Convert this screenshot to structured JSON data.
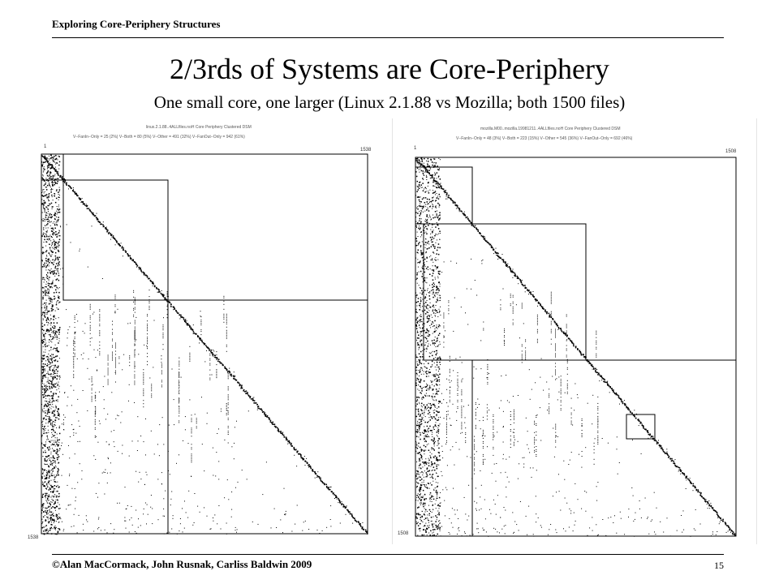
{
  "header": {
    "title": "Exploring Core-Periphery Structures"
  },
  "slide": {
    "title": "2/3rds of Systems are Core-Periphery",
    "subtitle": "One small core, one larger (Linux 2.1.88 vs Mozilla; both 1500 files)"
  },
  "left_dsm": {
    "caption1": "linux.2.1.88..4ALLfiles.noH Core Periphery Clustered DSM",
    "caption2": "V−FanIn−Only = 25 (2%) V−Both = 80 (5%) V−Other = 491 (32%) V−FanOut−Only = 942 (61%)",
    "corner_top_left": "1",
    "corner_top_right": "1538",
    "corner_bottom_left": "1538"
  },
  "right_dsm": {
    "caption1": "mozilla.M00..mozilla.19981211..4ALLfiles.noH Core Periphery Clustered DSM",
    "caption2": "V−FanIn−Only = 48 (3%) V−Both = 223 (15%) V−Other = 545 (36%) V−FanOut−Only = 692 (46%)",
    "corner_top_left": "1",
    "corner_top_right": "1508",
    "corner_bottom_left": "1508"
  },
  "footer": {
    "copyright": "©Alan MacCormack, John Rusnak, Carliss Baldwin 2009",
    "page_number": "15"
  }
}
